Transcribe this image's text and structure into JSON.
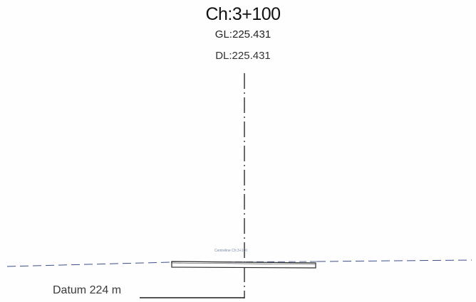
{
  "section": {
    "chainage_label": "Ch:3+100",
    "ground_level_label": "GL:225.431",
    "design_level_label": "DL:225.431",
    "datum_label": "Datum 224 m",
    "structure_annotation": "Centreline Ch:3+100"
  },
  "colors": {
    "centerline": "#1c1c1c",
    "ground_line": "#3b4f8a",
    "structure_outline": "#2a2a2a",
    "datum_line": "#1c1c1c"
  }
}
